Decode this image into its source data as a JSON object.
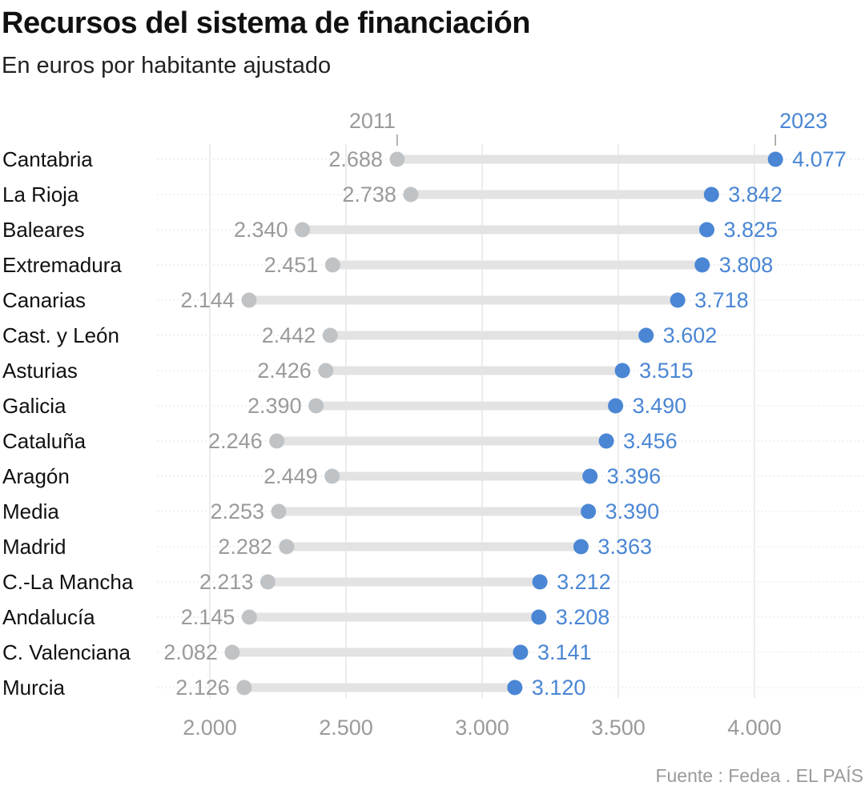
{
  "colors": {
    "start": "#c0c3c6",
    "end": "#4a86d4",
    "connector": "#e3e3e3",
    "grid": "#e6e6e6"
  },
  "source": "Fuente : Fedea . EL PAÍS",
  "chart_data": {
    "type": "dumbbell",
    "title": "Recursos del sistema de financiación",
    "subtitle": "En euros por habitante ajustado",
    "series_names": [
      "2011",
      "2023"
    ],
    "xlim": [
      1750,
      4150
    ],
    "x_ticks": [
      {
        "value": 2000,
        "label": "2.000"
      },
      {
        "value": 2500,
        "label": "2.500"
      },
      {
        "value": 3000,
        "label": "3.000"
      },
      {
        "value": 3500,
        "label": "3.500"
      },
      {
        "value": 4000,
        "label": "4.000"
      }
    ],
    "grid": true,
    "rows": [
      {
        "label": "Cantabria",
        "v2011": 2688,
        "v2011_label": "2.688",
        "v2023": 4077,
        "v2023_label": "4.077"
      },
      {
        "label": "La Rioja",
        "v2011": 2738,
        "v2011_label": "2.738",
        "v2023": 3842,
        "v2023_label": "3.842"
      },
      {
        "label": "Baleares",
        "v2011": 2340,
        "v2011_label": "2.340",
        "v2023": 3825,
        "v2023_label": "3.825"
      },
      {
        "label": "Extremadura",
        "v2011": 2451,
        "v2011_label": "2.451",
        "v2023": 3808,
        "v2023_label": "3.808"
      },
      {
        "label": "Canarias",
        "v2011": 2144,
        "v2011_label": "2.144",
        "v2023": 3718,
        "v2023_label": "3.718"
      },
      {
        "label": "Cast. y León",
        "v2011": 2442,
        "v2011_label": "2.442",
        "v2023": 3602,
        "v2023_label": "3.602"
      },
      {
        "label": "Asturias",
        "v2011": 2426,
        "v2011_label": "2.426",
        "v2023": 3515,
        "v2023_label": "3.515"
      },
      {
        "label": "Galicia",
        "v2011": 2390,
        "v2011_label": "2.390",
        "v2023": 3490,
        "v2023_label": "3.490"
      },
      {
        "label": "Cataluña",
        "v2011": 2246,
        "v2011_label": "2.246",
        "v2023": 3456,
        "v2023_label": "3.456"
      },
      {
        "label": "Aragón",
        "v2011": 2449,
        "v2011_label": "2.449",
        "v2023": 3396,
        "v2023_label": "3.396"
      },
      {
        "label": "Media",
        "v2011": 2253,
        "v2011_label": "2.253",
        "v2023": 3390,
        "v2023_label": "3.390"
      },
      {
        "label": "Madrid",
        "v2011": 2282,
        "v2011_label": "2.282",
        "v2023": 3363,
        "v2023_label": "3.363"
      },
      {
        "label": "C.-La Mancha",
        "v2011": 2213,
        "v2011_label": "2.213",
        "v2023": 3212,
        "v2023_label": "3.212"
      },
      {
        "label": "Andalucía",
        "v2011": 2145,
        "v2011_label": "2.145",
        "v2023": 3208,
        "v2023_label": "3.208"
      },
      {
        "label": "C. Valenciana",
        "v2011": 2082,
        "v2011_label": "2.082",
        "v2023": 3141,
        "v2023_label": "3.141"
      },
      {
        "label": "Murcia",
        "v2011": 2126,
        "v2011_label": "2.126",
        "v2023": 3120,
        "v2023_label": "3.120"
      }
    ]
  }
}
